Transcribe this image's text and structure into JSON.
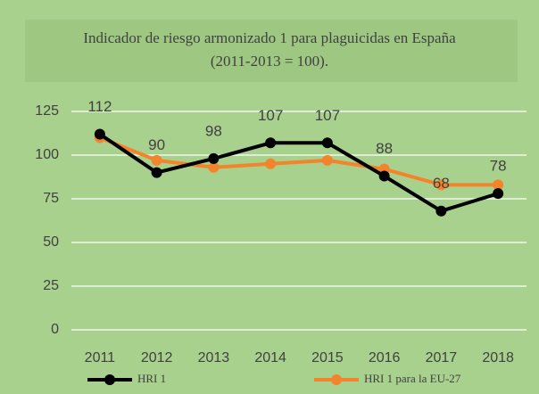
{
  "chart_data": {
    "type": "line",
    "title": [
      "Indicador de riesgo armonizado 1 para plaguicidas en España",
      "(2011-2013 = 100)."
    ],
    "categories": [
      "2011",
      "2012",
      "2013",
      "2014",
      "2015",
      "2016",
      "2017",
      "2018"
    ],
    "series": [
      {
        "name": "HRI 1",
        "color": "#000000",
        "values": [
          112,
          90,
          98,
          107,
          107,
          88,
          68,
          78
        ],
        "data_labels": true
      },
      {
        "name": "HRI 1 para la EU-27",
        "color": "#f4842c",
        "values": [
          110,
          97,
          93,
          95,
          97,
          92,
          83,
          83
        ],
        "data_labels": false
      }
    ],
    "ylim": [
      0,
      125
    ],
    "yticks": [
      0,
      25,
      50,
      75,
      100,
      125
    ],
    "grid": true,
    "legend": "bottom"
  }
}
